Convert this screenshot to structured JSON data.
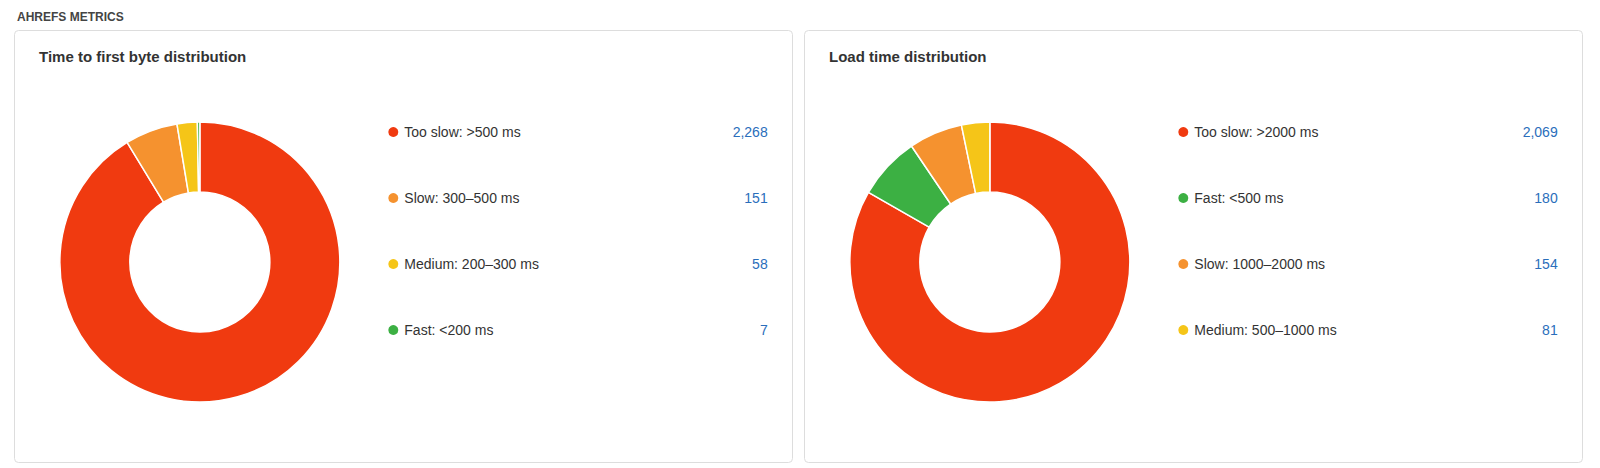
{
  "title": "AHREFS METRICS",
  "chart_data": [
    {
      "type": "pie",
      "title": "Time to first byte distribution",
      "categories": [
        "Too slow: >500 ms",
        "Slow: 300–500 ms",
        "Medium: 200–300 ms",
        "Fast: <200 ms"
      ],
      "values": [
        2268,
        151,
        58,
        7
      ],
      "value_labels": [
        "2,268",
        "151",
        "58",
        "7"
      ],
      "colors": [
        "#f03a10",
        "#f5922f",
        "#f5c518",
        "#3cb043"
      ],
      "legend": "right"
    },
    {
      "type": "pie",
      "title": "Load time distribution",
      "categories": [
        "Too slow: >2000 ms",
        "Fast: <500 ms",
        "Slow: 1000–2000 ms",
        "Medium: 500–1000 ms"
      ],
      "values": [
        2069,
        180,
        154,
        81
      ],
      "value_labels": [
        "2,069",
        "180",
        "154",
        "81"
      ],
      "colors": [
        "#f03a10",
        "#3cb043",
        "#f5922f",
        "#f5c518"
      ],
      "legend": "right"
    }
  ]
}
